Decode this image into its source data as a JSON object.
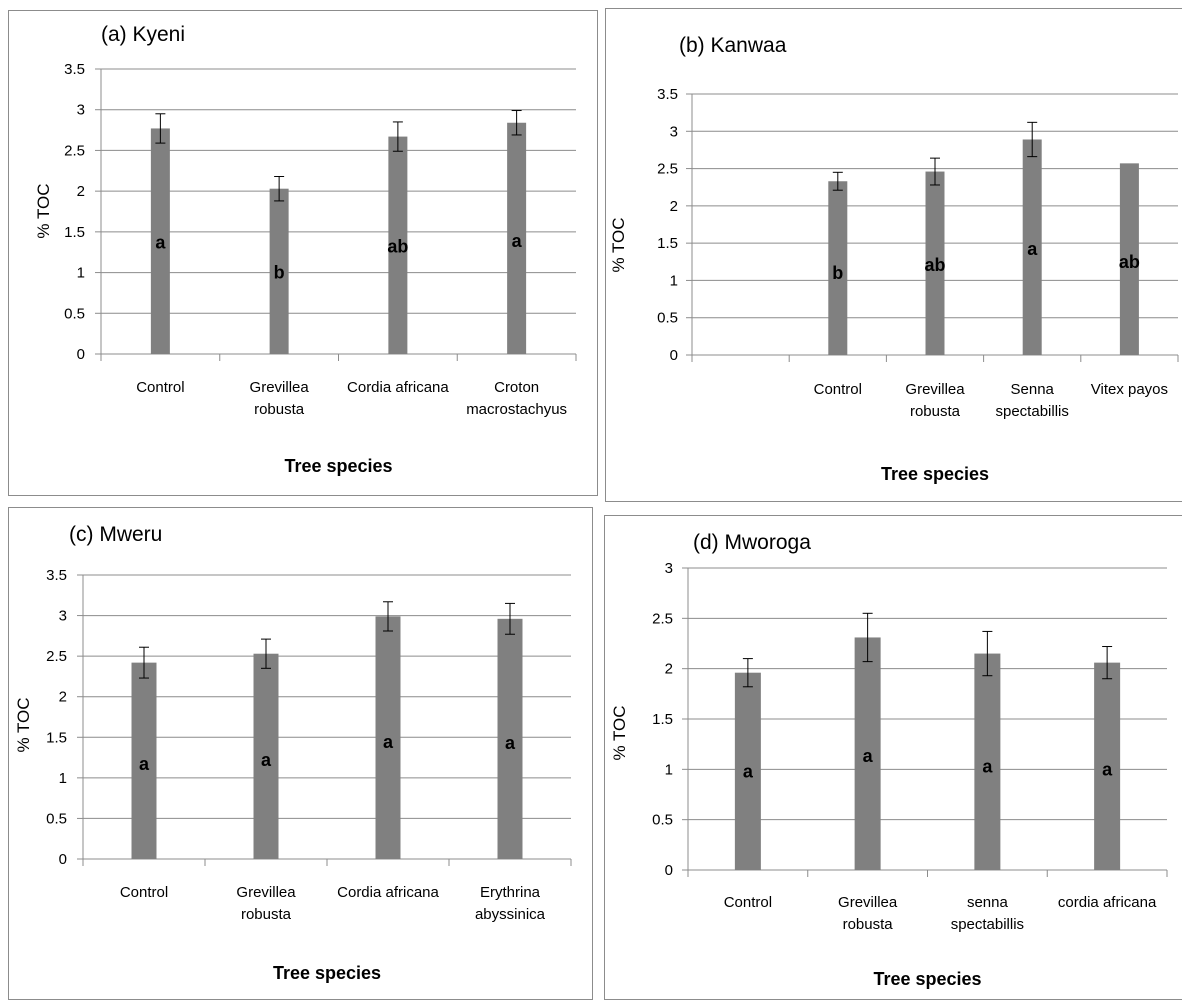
{
  "chart_data": [
    {
      "type": "bar",
      "title": "(a) Kyeni",
      "xlabel": "Tree species",
      "ylabel": "% TOC",
      "ylim": [
        0,
        3.5
      ],
      "ytick_step": 0.5,
      "yticks": [
        "0",
        "0.5",
        "1",
        "1.5",
        "2",
        "2.5",
        "3",
        "3.5"
      ],
      "grid": true,
      "bar_color": "#808080",
      "categories": [
        [
          "Control"
        ],
        [
          "Grevillea",
          "robusta"
        ],
        [
          "Cordia africana"
        ],
        [
          "Croton",
          "macrostachyus"
        ]
      ],
      "values": [
        2.77,
        2.03,
        2.67,
        2.84
      ],
      "errors": [
        0.18,
        0.15,
        0.18,
        0.15
      ],
      "letters": [
        "a",
        "b",
        "ab",
        "a"
      ],
      "letter_values": [
        1.37,
        1.0,
        1.32,
        1.39
      ]
    },
    {
      "type": "bar",
      "title": "(b) Kanwaa",
      "xlabel": "Tree species",
      "ylabel": "% TOC",
      "ylim": [
        0,
        3.5
      ],
      "ytick_step": 0.5,
      "yticks": [
        "0",
        "0.5",
        "1",
        "1.5",
        "2",
        "2.5",
        "3",
        "3.5"
      ],
      "grid": true,
      "bar_color": "#808080",
      "categories": [
        [
          ""
        ],
        [
          "Control"
        ],
        [
          "Grevillea",
          "robusta"
        ],
        [
          "Senna",
          "spectabillis"
        ],
        [
          "Vitex payos"
        ]
      ],
      "values": [
        null,
        2.33,
        2.46,
        2.89,
        2.57
      ],
      "errors": [
        null,
        0.12,
        0.18,
        0.23,
        null
      ],
      "letters": [
        "",
        "b",
        "ab",
        "a",
        "ab"
      ],
      "letter_values": [
        null,
        1.1,
        1.21,
        1.42,
        1.25
      ]
    },
    {
      "type": "bar",
      "title": "(c)  Mweru",
      "xlabel": "Tree species",
      "ylabel": "% TOC",
      "ylim": [
        0,
        3.5
      ],
      "ytick_step": 0.5,
      "yticks": [
        "0",
        "0.5",
        "1",
        "1.5",
        "2",
        "2.5",
        "3",
        "3.5"
      ],
      "grid": true,
      "bar_color": "#808080",
      "categories": [
        [
          "Control"
        ],
        [
          "Grevillea",
          "robusta"
        ],
        [
          "Cordia africana"
        ],
        [
          "Erythrina",
          "abyssinica"
        ]
      ],
      "values": [
        2.42,
        2.53,
        2.99,
        2.96
      ],
      "errors": [
        0.19,
        0.18,
        0.18,
        0.19
      ],
      "letters": [
        "a",
        "a",
        "a",
        "a"
      ],
      "letter_values": [
        1.17,
        1.22,
        1.44,
        1.43
      ]
    },
    {
      "type": "bar",
      "title": "(d) Mworoga",
      "xlabel": "Tree species",
      "ylabel": "% TOC",
      "ylim": [
        0,
        3
      ],
      "ytick_step": 0.5,
      "yticks": [
        "0",
        "0.5",
        "1",
        "1.5",
        "2",
        "2.5",
        "3"
      ],
      "grid": true,
      "bar_color": "#808080",
      "categories": [
        [
          "Control"
        ],
        [
          "Grevillea",
          "robusta"
        ],
        [
          "senna",
          "spectabillis"
        ],
        [
          "cordia africana"
        ]
      ],
      "values": [
        1.96,
        2.31,
        2.15,
        2.06
      ],
      "errors": [
        0.14,
        0.24,
        0.22,
        0.16
      ],
      "letters": [
        "a",
        "a",
        "a",
        "a"
      ],
      "letter_values": [
        0.98,
        1.13,
        1.03,
        1.0
      ]
    }
  ]
}
